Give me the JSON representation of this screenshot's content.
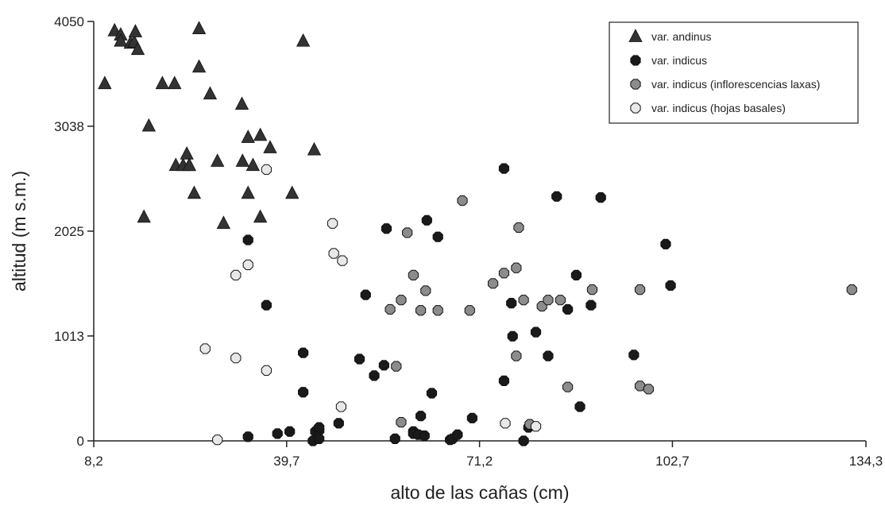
{
  "chart_data": {
    "type": "scatter",
    "title": "",
    "xlabel": "alto de las cañas (cm)",
    "ylabel": "altitud (m s.m.)",
    "xlim": [
      8.2,
      134.3
    ],
    "ylim": [
      0,
      4050
    ],
    "x_ticks": [
      "8,2",
      "39,7",
      "71,2",
      "102,7",
      "134,3"
    ],
    "x_tick_values": [
      8.2,
      39.7,
      71.2,
      102.7,
      134.3
    ],
    "y_ticks": [
      "0",
      "1013",
      "2025",
      "3038",
      "4050"
    ],
    "y_tick_values": [
      0,
      1013,
      2025,
      3038,
      4050
    ],
    "grid": false,
    "legend_position": "top-right",
    "series": [
      {
        "name": "var. andinus",
        "marker": "triangle",
        "color": "#333333",
        "points": [
          [
            10.0,
            3450
          ],
          [
            11.6,
            3960
          ],
          [
            12.6,
            3920
          ],
          [
            12.6,
            3860
          ],
          [
            14.2,
            3840
          ],
          [
            14.8,
            3850
          ],
          [
            15.0,
            3950
          ],
          [
            15.4,
            3780
          ],
          [
            16.4,
            2160
          ],
          [
            17.2,
            3040
          ],
          [
            19.4,
            3450
          ],
          [
            21.4,
            3450
          ],
          [
            21.6,
            2660
          ],
          [
            22.8,
            2660
          ],
          [
            23.8,
            2660
          ],
          [
            23.4,
            2770
          ],
          [
            23.8,
            2660
          ],
          [
            24.6,
            2390
          ],
          [
            25.4,
            3610
          ],
          [
            25.4,
            3980
          ],
          [
            27.2,
            3350
          ],
          [
            28.4,
            2700
          ],
          [
            29.4,
            2100
          ],
          [
            32.4,
            3250
          ],
          [
            32.5,
            2700
          ],
          [
            33.4,
            2390
          ],
          [
            33.4,
            2930
          ],
          [
            34.2,
            2660
          ],
          [
            35.4,
            2160
          ],
          [
            35.4,
            2950
          ],
          [
            37.0,
            2830
          ],
          [
            40.6,
            2390
          ],
          [
            42.4,
            3860
          ],
          [
            44.2,
            2810
          ]
        ]
      },
      {
        "name": "var. indicus",
        "marker": "octagon",
        "color": "#1a1a1a",
        "points": [
          [
            33.4,
            1940
          ],
          [
            33.4,
            40
          ],
          [
            36.4,
            1310
          ],
          [
            38.2,
            70
          ],
          [
            40.2,
            90
          ],
          [
            42.4,
            850
          ],
          [
            42.4,
            470
          ],
          [
            44.0,
            0
          ],
          [
            44.4,
            90
          ],
          [
            45.0,
            100
          ],
          [
            45.0,
            130
          ],
          [
            45.0,
            20
          ],
          [
            48.2,
            170
          ],
          [
            51.6,
            790
          ],
          [
            52.6,
            1410
          ],
          [
            54.0,
            630
          ],
          [
            55.6,
            730
          ],
          [
            56.0,
            2050
          ],
          [
            57.4,
            20
          ],
          [
            60.4,
            90
          ],
          [
            60.4,
            70
          ],
          [
            61.2,
            60
          ],
          [
            61.6,
            240
          ],
          [
            62.2,
            50
          ],
          [
            62.6,
            2130
          ],
          [
            63.4,
            460
          ],
          [
            64.4,
            1970
          ],
          [
            66.4,
            10
          ],
          [
            66.8,
            20
          ],
          [
            67.6,
            60
          ],
          [
            70.0,
            220
          ],
          [
            75.2,
            2630
          ],
          [
            75.2,
            580
          ],
          [
            76.4,
            1330
          ],
          [
            76.6,
            1010
          ],
          [
            78.4,
            0
          ],
          [
            79.2,
            130
          ],
          [
            80.4,
            1050
          ],
          [
            82.4,
            820
          ],
          [
            83.8,
            2360
          ],
          [
            85.6,
            1270
          ],
          [
            87.0,
            1600
          ],
          [
            87.6,
            330
          ],
          [
            89.4,
            1310
          ],
          [
            91.0,
            2350
          ],
          [
            96.4,
            830
          ],
          [
            101.6,
            1900
          ],
          [
            102.4,
            1500
          ]
        ]
      },
      {
        "name": "var. indicus (inflorescencias laxas)",
        "marker": "octagon",
        "color": "#8c8c8c",
        "points": [
          [
            56.6,
            1270
          ],
          [
            57.6,
            720
          ],
          [
            58.4,
            1360
          ],
          [
            58.4,
            180
          ],
          [
            59.4,
            2010
          ],
          [
            60.4,
            1600
          ],
          [
            61.6,
            1260
          ],
          [
            62.4,
            1450
          ],
          [
            64.4,
            1260
          ],
          [
            68.4,
            2320
          ],
          [
            69.6,
            1260
          ],
          [
            73.4,
            1520
          ],
          [
            75.2,
            1620
          ],
          [
            77.2,
            1670
          ],
          [
            77.6,
            2060
          ],
          [
            77.2,
            820
          ],
          [
            78.4,
            1360
          ],
          [
            79.4,
            160
          ],
          [
            81.4,
            1300
          ],
          [
            82.4,
            1360
          ],
          [
            84.4,
            1360
          ],
          [
            85.6,
            520
          ],
          [
            89.6,
            1460
          ],
          [
            97.4,
            1460
          ],
          [
            97.4,
            530
          ],
          [
            98.8,
            500
          ],
          [
            132.0,
            1460
          ]
        ]
      },
      {
        "name": "var. indicus (hojas basales)",
        "marker": "octagon",
        "color": "#e8e8e8",
        "points": [
          [
            26.4,
            890
          ],
          [
            28.4,
            10
          ],
          [
            31.4,
            1600
          ],
          [
            31.4,
            800
          ],
          [
            33.4,
            1700
          ],
          [
            36.4,
            2620
          ],
          [
            36.4,
            680
          ],
          [
            47.2,
            2100
          ],
          [
            47.4,
            1810
          ],
          [
            48.6,
            330
          ],
          [
            48.8,
            1740
          ],
          [
            75.4,
            170
          ],
          [
            80.4,
            140
          ]
        ]
      }
    ]
  }
}
